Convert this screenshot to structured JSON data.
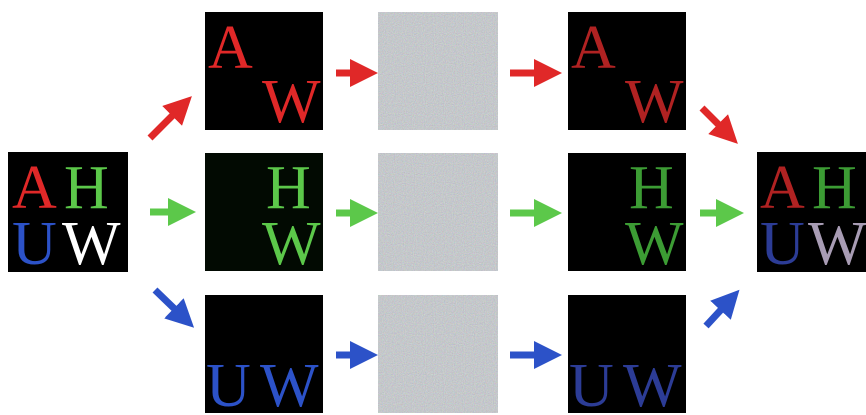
{
  "input": {
    "letters": [
      "A",
      "H",
      "U",
      "W"
    ]
  },
  "channels": [
    {
      "letters": [
        "A",
        "W"
      ]
    },
    {
      "letters": [
        "H",
        "W"
      ]
    },
    {
      "letters": [
        "U",
        "W"
      ]
    }
  ],
  "outputs": [
    {
      "letters": [
        "A",
        "W"
      ]
    },
    {
      "letters": [
        "H",
        "W"
      ]
    },
    {
      "letters": [
        "U",
        "W"
      ]
    }
  ],
  "result": {
    "letters": [
      "A",
      "H",
      "U",
      "W"
    ]
  }
}
